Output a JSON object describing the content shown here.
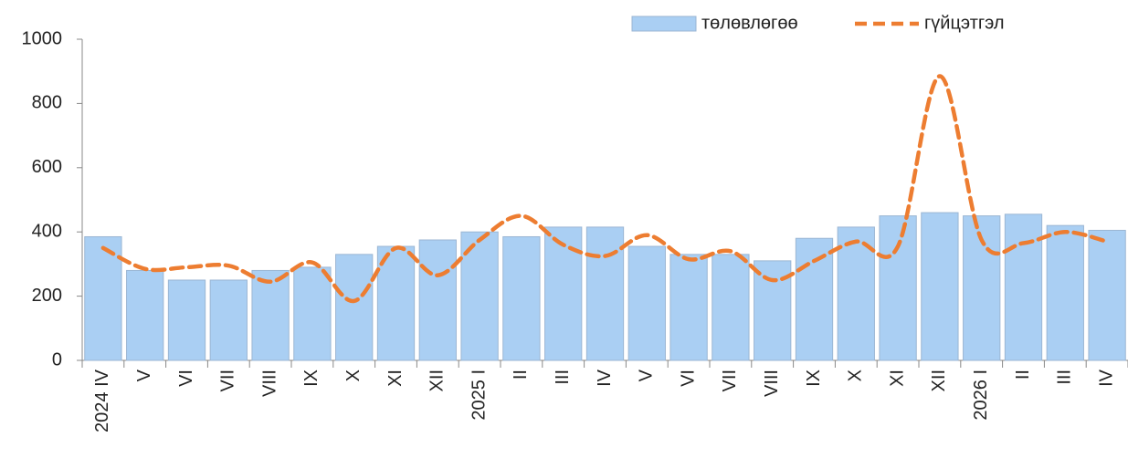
{
  "chart_data": {
    "type": "bar_line",
    "categories": [
      "2024 IV",
      "V",
      "VI",
      "VII",
      "VIII",
      "IX",
      "X",
      "XI",
      "XII",
      "2025 I",
      "II",
      "III",
      "IV",
      "V",
      "VI",
      "VII",
      "VIII",
      "IX",
      "X",
      "XI",
      "XII",
      "2026 I",
      "II",
      "III",
      "IV"
    ],
    "series": [
      {
        "name": "төлөвлөгөө",
        "type": "bar",
        "color": "#aacff3",
        "values": [
          385,
          280,
          250,
          250,
          280,
          290,
          330,
          355,
          375,
          400,
          385,
          415,
          415,
          355,
          330,
          330,
          310,
          380,
          415,
          450,
          460,
          450,
          455,
          420,
          405
        ]
      },
      {
        "name": "гүйцэтгэл",
        "type": "line",
        "color": "#ed7d31",
        "values": [
          350,
          285,
          290,
          295,
          245,
          305,
          185,
          350,
          265,
          375,
          450,
          360,
          325,
          390,
          315,
          340,
          250,
          310,
          370,
          355,
          885,
          375,
          365,
          400,
          370
        ]
      }
    ],
    "ylim": [
      0,
      1000
    ],
    "yticks": [
      0,
      200,
      400,
      600,
      800,
      1000
    ],
    "legend": "top-right"
  }
}
